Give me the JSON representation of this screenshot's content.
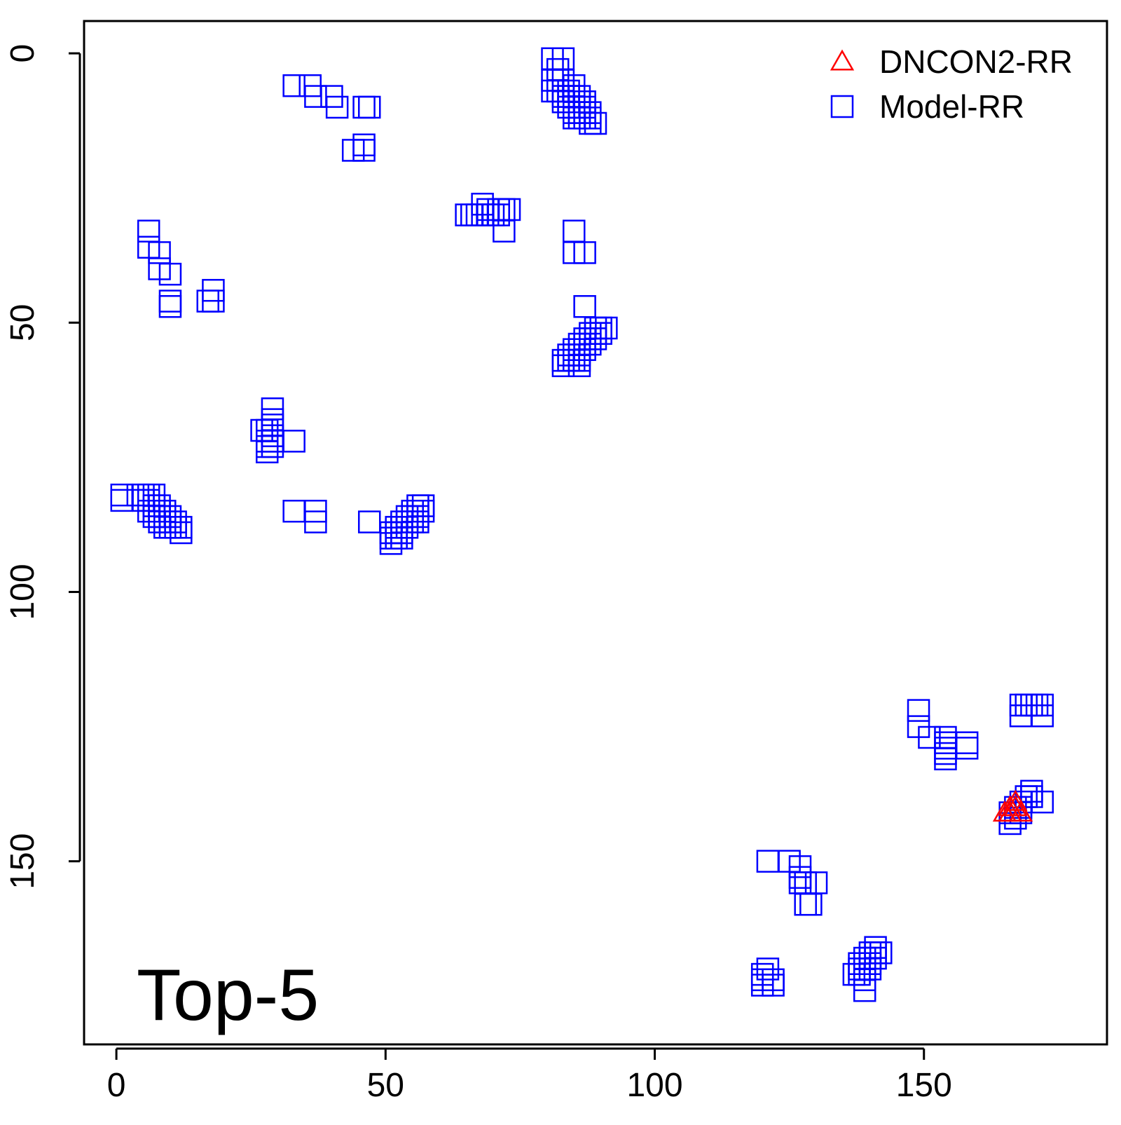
{
  "chart_data": {
    "type": "scatter",
    "title": "",
    "xlabel": "",
    "ylabel": "",
    "panel_label": "Top-5",
    "xlim": [
      -6,
      184
    ],
    "ylim": [
      184,
      -6
    ],
    "y_reversed": true,
    "x_ticks": [
      0,
      50,
      100,
      150
    ],
    "y_ticks": [
      0,
      50,
      100,
      150
    ],
    "legend_position": "top-right",
    "legend": [
      {
        "label": "DNCON2-RR",
        "marker": "triangle",
        "color": "#ff0000"
      },
      {
        "label": "Model-RR",
        "marker": "square",
        "color": "#0000ff"
      }
    ],
    "series": [
      {
        "name": "DNCON2-RR",
        "marker": "triangle",
        "color": "#ff0000",
        "points": [
          [
            165,
            141
          ],
          [
            166,
            140
          ],
          [
            167,
            140
          ],
          [
            166,
            141
          ],
          [
            168,
            141
          ],
          [
            167,
            139
          ]
        ]
      },
      {
        "name": "Model-RR",
        "marker": "square",
        "color": "#0000ff",
        "points": [
          [
            81,
            1
          ],
          [
            83,
            1
          ],
          [
            82,
            3
          ],
          [
            81,
            5
          ],
          [
            82,
            5
          ],
          [
            83,
            5
          ],
          [
            81,
            7
          ],
          [
            82,
            7
          ],
          [
            83,
            7
          ],
          [
            84,
            7
          ],
          [
            85,
            6
          ],
          [
            83,
            8
          ],
          [
            84,
            8
          ],
          [
            85,
            8
          ],
          [
            86,
            8
          ],
          [
            83,
            9
          ],
          [
            84,
            9
          ],
          [
            85,
            9
          ],
          [
            86,
            9
          ],
          [
            87,
            9
          ],
          [
            84,
            10
          ],
          [
            85,
            10
          ],
          [
            86,
            10
          ],
          [
            87,
            10
          ],
          [
            85,
            11
          ],
          [
            86,
            11
          ],
          [
            87,
            11
          ],
          [
            88,
            11
          ],
          [
            85,
            12
          ],
          [
            86,
            12
          ],
          [
            87,
            12
          ],
          [
            88,
            12
          ],
          [
            88,
            13
          ],
          [
            89,
            13
          ],
          [
            33,
            6
          ],
          [
            36,
            6
          ],
          [
            37,
            8
          ],
          [
            40,
            8
          ],
          [
            41,
            10
          ],
          [
            46,
            10
          ],
          [
            47,
            10
          ],
          [
            44,
            18
          ],
          [
            46,
            17
          ],
          [
            46,
            18
          ],
          [
            65,
            30
          ],
          [
            66,
            30
          ],
          [
            67,
            30
          ],
          [
            68,
            30
          ],
          [
            69,
            30
          ],
          [
            70,
            30
          ],
          [
            71,
            30
          ],
          [
            72,
            29
          ],
          [
            73,
            29
          ],
          [
            68,
            28
          ],
          [
            69,
            29
          ],
          [
            71,
            29
          ],
          [
            72,
            33
          ],
          [
            6,
            33
          ],
          [
            6,
            36
          ],
          [
            8,
            37
          ],
          [
            8,
            40
          ],
          [
            10,
            41
          ],
          [
            10,
            46
          ],
          [
            10,
            47
          ],
          [
            17,
            46
          ],
          [
            18,
            44
          ],
          [
            18,
            46
          ],
          [
            85,
            33
          ],
          [
            85,
            37
          ],
          [
            87,
            37
          ],
          [
            87,
            47
          ],
          [
            90,
            51
          ],
          [
            91,
            51
          ],
          [
            89,
            51
          ],
          [
            88,
            52
          ],
          [
            89,
            52
          ],
          [
            90,
            52
          ],
          [
            87,
            53
          ],
          [
            88,
            53
          ],
          [
            89,
            53
          ],
          [
            86,
            54
          ],
          [
            87,
            54
          ],
          [
            88,
            54
          ],
          [
            85,
            55
          ],
          [
            86,
            55
          ],
          [
            87,
            55
          ],
          [
            84,
            56
          ],
          [
            85,
            56
          ],
          [
            86,
            56
          ],
          [
            84,
            57
          ],
          [
            85,
            57
          ],
          [
            86,
            57
          ],
          [
            83,
            57
          ],
          [
            83,
            58
          ],
          [
            86,
            58
          ],
          [
            29,
            66
          ],
          [
            29,
            68
          ],
          [
            29,
            69
          ],
          [
            28,
            70
          ],
          [
            27,
            70
          ],
          [
            29,
            71
          ],
          [
            28,
            72
          ],
          [
            29,
            72
          ],
          [
            33,
            72
          ],
          [
            28,
            73
          ],
          [
            29,
            73
          ],
          [
            28,
            74
          ],
          [
            1,
            82
          ],
          [
            1,
            83
          ],
          [
            4,
            82
          ],
          [
            5,
            82
          ],
          [
            6,
            82
          ],
          [
            7,
            82
          ],
          [
            5,
            83
          ],
          [
            6,
            83
          ],
          [
            7,
            84
          ],
          [
            8,
            84
          ],
          [
            6,
            85
          ],
          [
            7,
            85
          ],
          [
            8,
            85
          ],
          [
            9,
            85
          ],
          [
            7,
            86
          ],
          [
            8,
            86
          ],
          [
            9,
            86
          ],
          [
            10,
            86
          ],
          [
            8,
            87
          ],
          [
            9,
            87
          ],
          [
            10,
            87
          ],
          [
            11,
            87
          ],
          [
            9,
            88
          ],
          [
            10,
            88
          ],
          [
            11,
            88
          ],
          [
            12,
            88
          ],
          [
            12,
            89
          ],
          [
            33,
            85
          ],
          [
            37,
            85
          ],
          [
            37,
            87
          ],
          [
            47,
            87
          ],
          [
            56,
            84
          ],
          [
            57,
            84
          ],
          [
            55,
            85
          ],
          [
            56,
            85
          ],
          [
            57,
            85
          ],
          [
            54,
            86
          ],
          [
            55,
            86
          ],
          [
            56,
            86
          ],
          [
            53,
            87
          ],
          [
            54,
            87
          ],
          [
            55,
            87
          ],
          [
            56,
            87
          ],
          [
            52,
            88
          ],
          [
            53,
            88
          ],
          [
            54,
            88
          ],
          [
            51,
            89
          ],
          [
            52,
            89
          ],
          [
            53,
            89
          ],
          [
            51,
            90
          ],
          [
            52,
            90
          ],
          [
            53,
            90
          ],
          [
            51,
            91
          ],
          [
            149,
            122
          ],
          [
            149,
            125
          ],
          [
            151,
            127
          ],
          [
            154,
            127
          ],
          [
            154,
            128
          ],
          [
            154,
            129
          ],
          [
            158,
            128
          ],
          [
            158,
            129
          ],
          [
            154,
            130
          ],
          [
            154,
            131
          ],
          [
            168,
            121
          ],
          [
            169,
            121
          ],
          [
            170,
            121
          ],
          [
            171,
            121
          ],
          [
            172,
            121
          ],
          [
            168,
            123
          ],
          [
            172,
            123
          ],
          [
            170,
            137
          ],
          [
            169,
            138
          ],
          [
            170,
            138
          ],
          [
            172,
            139
          ],
          [
            168,
            139
          ],
          [
            168,
            140
          ],
          [
            167,
            140
          ],
          [
            166,
            141
          ],
          [
            168,
            141
          ],
          [
            167,
            142
          ],
          [
            166,
            143
          ],
          [
            121,
            150
          ],
          [
            125,
            150
          ],
          [
            127,
            151
          ],
          [
            127,
            153
          ],
          [
            127,
            154
          ],
          [
            128,
            154
          ],
          [
            130,
            154
          ],
          [
            128,
            158
          ],
          [
            129,
            158
          ],
          [
            121,
            170
          ],
          [
            120,
            171
          ],
          [
            120,
            172
          ],
          [
            122,
            172
          ],
          [
            120,
            173
          ],
          [
            122,
            173
          ],
          [
            141,
            166
          ],
          [
            140,
            167
          ],
          [
            141,
            167
          ],
          [
            142,
            167
          ],
          [
            139,
            168
          ],
          [
            140,
            168
          ],
          [
            141,
            168
          ],
          [
            138,
            169
          ],
          [
            139,
            169
          ],
          [
            140,
            169
          ],
          [
            138,
            170
          ],
          [
            139,
            170
          ],
          [
            140,
            170
          ],
          [
            137,
            171
          ],
          [
            138,
            171
          ],
          [
            139,
            172
          ],
          [
            139,
            174
          ]
        ]
      }
    ]
  }
}
